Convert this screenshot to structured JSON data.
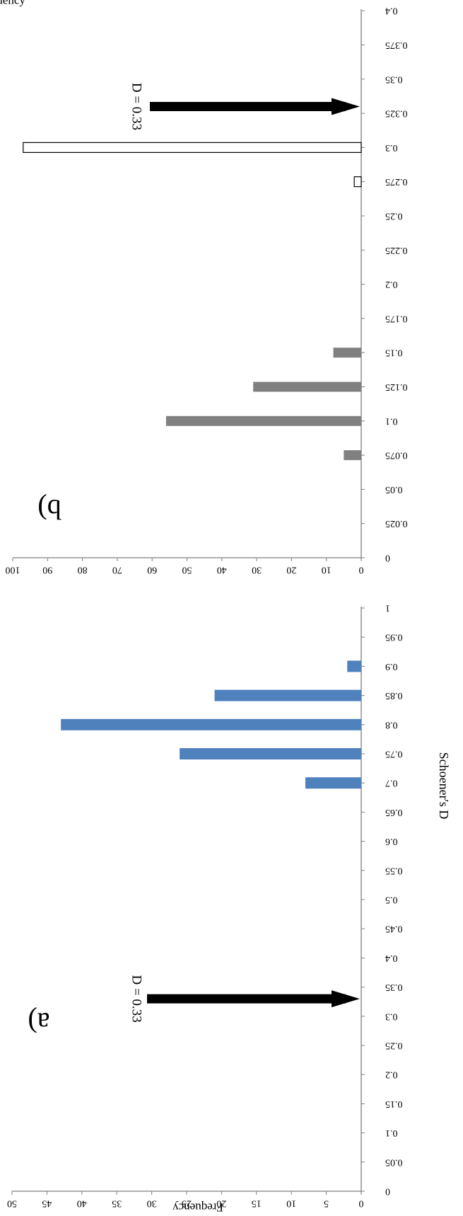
{
  "chart_data": [
    {
      "panel_label": "a)",
      "type": "bar",
      "orientation": "horizontal",
      "ylabel": "Frequency",
      "xlabel": "Schoener's D",
      "ylim": [
        0,
        50
      ],
      "y_ticks": [
        "0",
        "5",
        "10",
        "15",
        "20",
        "25",
        "30",
        "35",
        "40",
        "45",
        "50"
      ],
      "categories": [
        "0",
        "0.05",
        "0.1",
        "0.15",
        "0.2",
        "0.25",
        "0.3",
        "0.35",
        "0.4",
        "0.45",
        "0.5",
        "0.55",
        "0.6",
        "0.65",
        "0.7",
        "0.75",
        "0.8",
        "0.85",
        "0.9",
        "0.95",
        "1"
      ],
      "values": [
        0,
        0,
        0,
        0,
        0,
        0,
        0,
        0,
        0,
        0,
        0,
        0,
        0,
        0,
        8,
        26,
        43,
        21,
        2,
        0,
        0
      ],
      "bar_color": "#4f81bd",
      "annotation": {
        "text": "D = 0.33",
        "value": 0.33
      }
    },
    {
      "panel_label": "b)",
      "type": "bar",
      "orientation": "horizontal",
      "ylabel": "Frequency",
      "ylim": [
        0,
        100
      ],
      "y_ticks": [
        "0",
        "10",
        "20",
        "30",
        "40",
        "50",
        "60",
        "70",
        "80",
        "90",
        "100"
      ],
      "categories": [
        "0",
        "0.025",
        "0.05",
        "0.075",
        "0.1",
        "0.125",
        "0.15",
        "0.175",
        "0.2",
        "0.225",
        "0.25",
        "0.275",
        "0.3",
        "0.325",
        "0.35",
        "0.375",
        "0.4"
      ],
      "series": [
        {
          "values": [
            0,
            0,
            0,
            5,
            56,
            31,
            8,
            0,
            0,
            0,
            0,
            0,
            0,
            0,
            0,
            0,
            0
          ],
          "color": "#808080"
        },
        {
          "values": [
            0,
            0,
            0,
            0,
            0,
            0,
            0,
            0,
            0,
            0,
            0,
            2,
            97,
            0,
            0,
            0,
            0
          ],
          "color": "#ffffff",
          "stroke": "#000000"
        }
      ],
      "annotation": {
        "text": "D = 0.33",
        "value": 0.33
      }
    }
  ]
}
